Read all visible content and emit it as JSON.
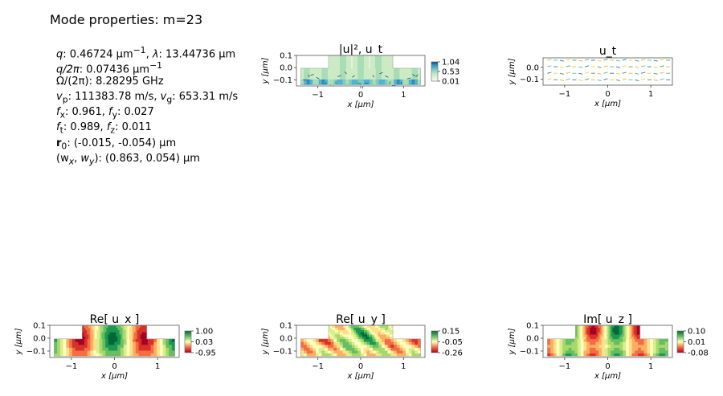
{
  "header": {
    "title": "Mode properties: m=23"
  },
  "properties": {
    "q_label": "q",
    "q_value": ": 0.46724 μm",
    "lambda_label": "λ",
    "lambda_value": ":  13.44736 μm",
    "q2pi_label": "q/2π",
    "q2pi_value": ": 0.07436 μm",
    "omega_label": "Ω/(2π)",
    "omega_value": ": 8.28295 GHz",
    "vp_label": "v",
    "vp_value": ": 111383.78 m/s, ",
    "vg_label": "v",
    "vg_value": ": 653.31 m/s",
    "fx_label": "f",
    "fx_value": ":  0.961, ",
    "fy_label": "f",
    "fy_value": ": 0.027",
    "ft_label": "f",
    "ft_value": ":  0.989, ",
    "fz_label": "f",
    "fz_value": ": 0.011",
    "r0_label": "r",
    "r0_value": ":  (-0.015, -0.054) μm",
    "w_label": "(w",
    "w_value": ":  (0.863, 0.054) μm"
  },
  "chart_data": [
    {
      "type": "heatmap",
      "id": "abs_u",
      "title": "|u|², u_t",
      "xlabel": "x [μm]",
      "ylabel": "y [μm]",
      "xlim": [
        -1.5,
        1.5
      ],
      "ylim": [
        -0.15,
        0.1
      ],
      "xticks": [
        "−1",
        "0",
        "1"
      ],
      "yticks": [
        "0.1",
        "0.0",
        "−0.1"
      ],
      "colorbar": {
        "ticks": [
          "1.04",
          "0.53",
          "0.01"
        ],
        "colormap": "GnBu"
      }
    },
    {
      "type": "heatmap",
      "id": "u_t",
      "title": "u_t",
      "xlabel": "x [μm]",
      "ylabel": "y [μm]",
      "xlim": [
        -1.5,
        1.5
      ],
      "ylim": [
        -0.15,
        0.08
      ],
      "xticks": [
        "−1",
        "0",
        "1"
      ],
      "yticks": [
        "0.0",
        "−0.1"
      ]
    },
    {
      "type": "heatmap",
      "id": "re_ux",
      "title": "Re[ u_x ]",
      "xlabel": "x [μm]",
      "ylabel": "y [μm]",
      "xlim": [
        -1.5,
        1.5
      ],
      "ylim": [
        -0.15,
        0.1
      ],
      "xticks": [
        "−1",
        "0",
        "1"
      ],
      "yticks": [
        "0.1",
        "0.0",
        "−0.1"
      ],
      "colorbar": {
        "ticks": [
          "1.00",
          "0.03",
          "-0.95"
        ],
        "colormap": "RdYlGn"
      }
    },
    {
      "type": "heatmap",
      "id": "re_uy",
      "title": "Re[ u_y ]",
      "xlabel": "x [μm]",
      "ylabel": "y [μm]",
      "xlim": [
        -1.5,
        1.5
      ],
      "ylim": [
        -0.15,
        0.1
      ],
      "xticks": [
        "−1",
        "0",
        "1"
      ],
      "yticks": [
        "0.1",
        "0.0",
        "−0.1"
      ],
      "colorbar": {
        "ticks": [
          "0.15",
          "-0.05",
          "-0.26"
        ],
        "colormap": "RdYlGn"
      }
    },
    {
      "type": "heatmap",
      "id": "im_uz",
      "title": "Im[ u_z ]",
      "xlabel": "x [μm]",
      "ylabel": "y [μm]",
      "xlim": [
        -1.5,
        1.5
      ],
      "ylim": [
        -0.15,
        0.1
      ],
      "xticks": [
        "−1",
        "0",
        "1"
      ],
      "yticks": [
        "0.1",
        "0.0",
        "−0.1"
      ],
      "colorbar": {
        "ticks": [
          "0.10",
          "0.01",
          "-0.08"
        ],
        "colormap": "RdYlGn"
      }
    }
  ]
}
